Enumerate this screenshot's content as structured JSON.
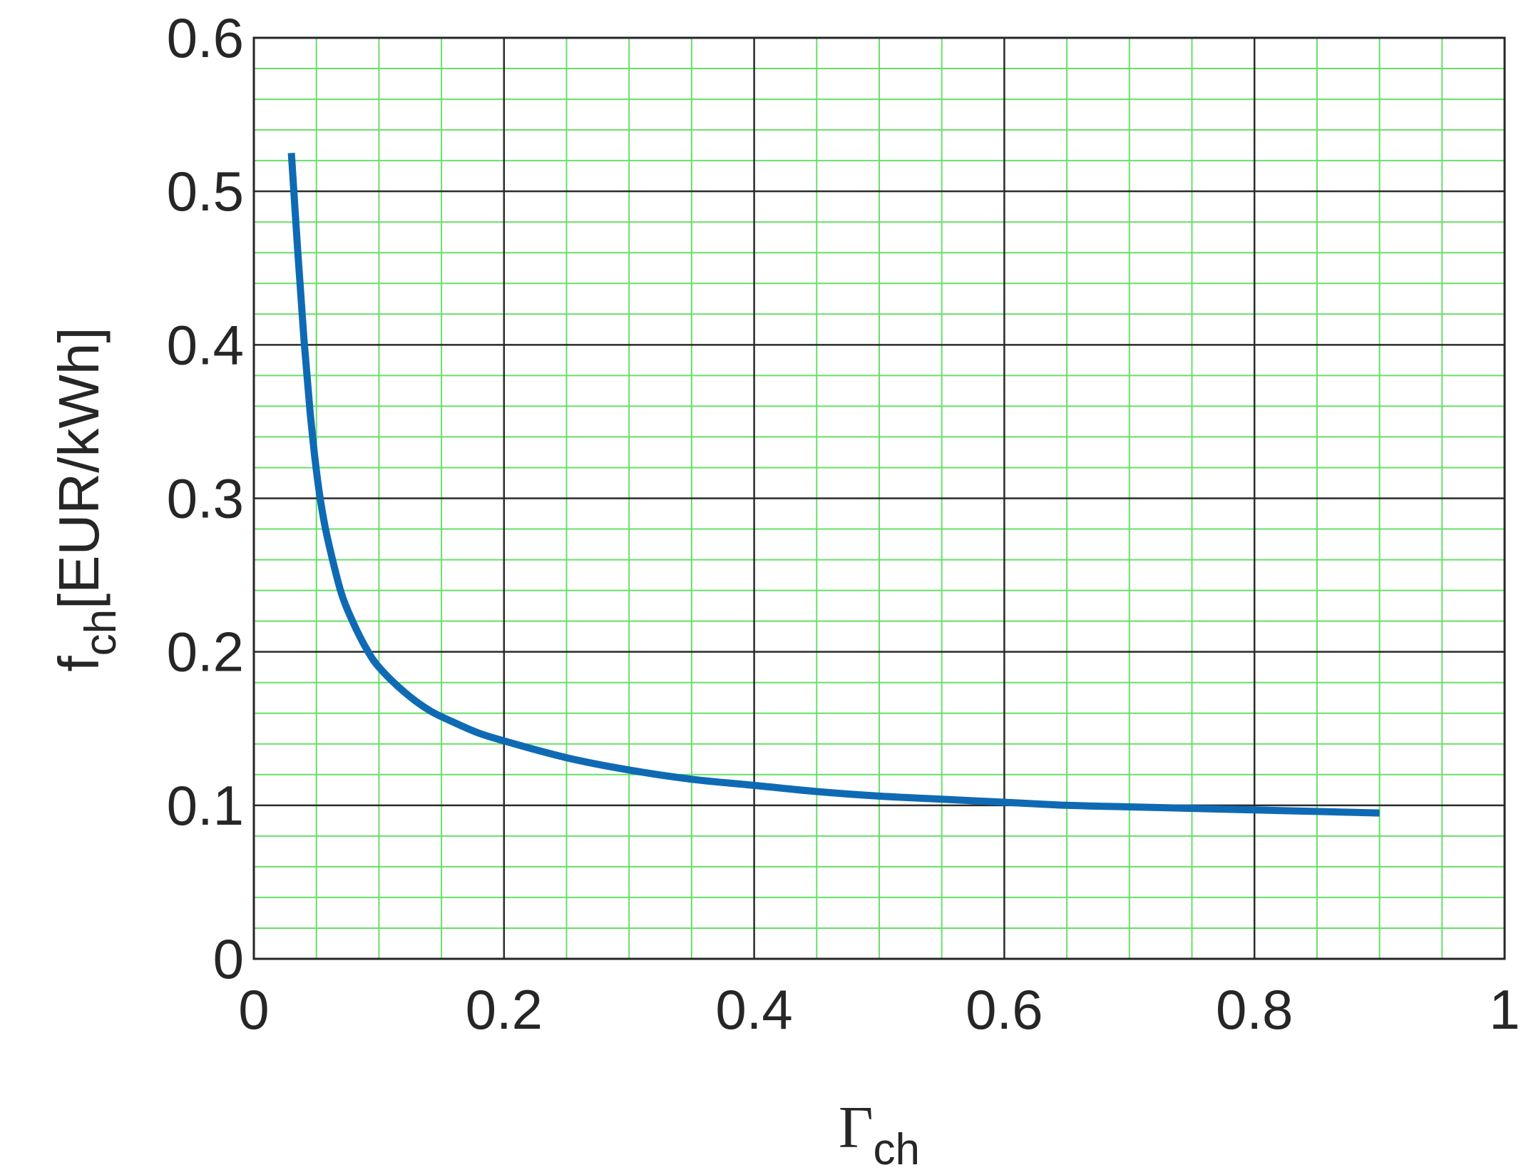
{
  "chart_data": {
    "type": "line",
    "title": "",
    "xlabel": {
      "main": "Γ",
      "sub": "ch"
    },
    "ylabel": {
      "main": "f",
      "sub": "ch",
      "rest": "[EUR/kWh]"
    },
    "xlim": [
      0,
      1
    ],
    "ylim": [
      0,
      0.6
    ],
    "x_ticks": [
      0,
      0.2,
      0.4,
      0.6,
      0.8,
      1
    ],
    "x_tick_labels": [
      "0",
      "0.2",
      "0.4",
      "0.6",
      "0.8",
      "1"
    ],
    "y_ticks": [
      0,
      0.1,
      0.2,
      0.3,
      0.4,
      0.5,
      0.6
    ],
    "y_tick_labels": [
      "0",
      "0.1",
      "0.2",
      "0.3",
      "0.4",
      "0.5",
      "0.6"
    ],
    "grid": {
      "major": true,
      "minor": true,
      "major_color": "#2b2b2b",
      "minor_color": "#66e066",
      "minor_x_step": 0.05,
      "minor_y_step": 0.02
    },
    "legend": "none",
    "series": [
      {
        "color": "#0f6ab4",
        "x": [
          0.03,
          0.035,
          0.04,
          0.045,
          0.05,
          0.055,
          0.06,
          0.07,
          0.08,
          0.09,
          0.1,
          0.12,
          0.14,
          0.16,
          0.18,
          0.2,
          0.25,
          0.3,
          0.35,
          0.4,
          0.45,
          0.5,
          0.55,
          0.6,
          0.65,
          0.7,
          0.75,
          0.8,
          0.85,
          0.9
        ],
        "y": [
          0.525,
          0.462,
          0.404,
          0.356,
          0.318,
          0.29,
          0.27,
          0.238,
          0.218,
          0.202,
          0.19,
          0.174,
          0.162,
          0.154,
          0.147,
          0.142,
          0.131,
          0.123,
          0.117,
          0.113,
          0.109,
          0.106,
          0.104,
          0.102,
          0.1,
          0.099,
          0.098,
          0.097,
          0.096,
          0.095
        ]
      }
    ]
  }
}
